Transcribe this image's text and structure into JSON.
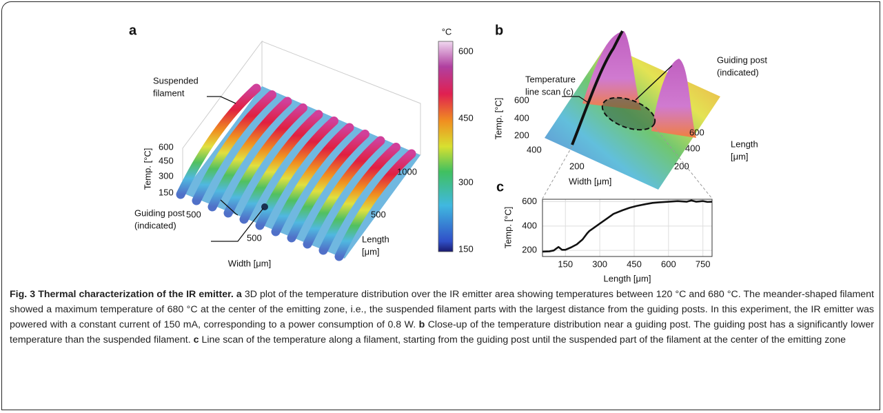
{
  "panel_a": {
    "label": "a",
    "colorbar_unit": "°C",
    "colorbar_ticks": [
      "600",
      "450",
      "300",
      "150"
    ],
    "annotation_top": [
      "Suspended",
      "filament"
    ],
    "annotation_bottom": [
      "Guiding post",
      "(indicated)"
    ],
    "z_label": "Temp. [°C]",
    "z_ticks": [
      "600",
      "450",
      "300",
      "150"
    ],
    "width_ticks": [
      "500",
      "500"
    ],
    "width_label": "Width [μm]",
    "length_ticks": [
      "1000",
      "500"
    ],
    "length_label": [
      "Length",
      "[μm]"
    ]
  },
  "panel_b": {
    "label": "b",
    "annotation_left": [
      "Temperature",
      "line scan (c)"
    ],
    "annotation_right": [
      "Guiding post",
      "(indicated)"
    ],
    "z_label": "Temp. [°C]",
    "z_ticks": [
      "600",
      "400",
      "200"
    ],
    "width_ticks": [
      "400",
      "200"
    ],
    "width_label": "Width [μm]",
    "length_ticks": [
      "600",
      "400",
      "200"
    ],
    "length_label": [
      "Length",
      "[μm]"
    ]
  },
  "chart_data": {
    "type": "line",
    "label": "c",
    "xlabel": "Length [μm]",
    "ylabel": "Temp. [°C]",
    "color": "#111111",
    "grid": true,
    "x": [
      50,
      80,
      100,
      110,
      120,
      135,
      150,
      175,
      200,
      225,
      245,
      255,
      270,
      300,
      330,
      360,
      400,
      430,
      460,
      500,
      530,
      560,
      600,
      640,
      680,
      700,
      720,
      750,
      770,
      790
    ],
    "values": [
      190,
      192,
      200,
      215,
      228,
      205,
      205,
      225,
      250,
      290,
      340,
      360,
      380,
      420,
      460,
      500,
      530,
      550,
      565,
      580,
      590,
      595,
      600,
      605,
      600,
      610,
      600,
      605,
      598,
      600
    ],
    "xlim": [
      50,
      790
    ],
    "ylim": [
      150,
      620
    ],
    "xticks": [
      150,
      300,
      450,
      600,
      750
    ],
    "yticks": [
      200,
      400,
      600
    ]
  },
  "caption": {
    "title": "Fig. 3 Thermal characterization of the IR emitter.",
    "items": [
      {
        "letter": "a",
        "text": "3D plot of the temperature distribution over the IR emitter area showing temperatures between 120 °C and 680 °C. The meander-shaped filament showed a maximum temperature of 680 °C at the center of the emitting zone, i.e., the suspended filament parts with the largest distance from the guiding posts. In this experiment, the IR emitter was powered with a constant current of 150 mA, corresponding to a power consumption of 0.8 W."
      },
      {
        "letter": "b",
        "text": "Close-up of the temperature distribution near a guiding post. The guiding post has a significantly lower temperature than the suspended filament."
      },
      {
        "letter": "c",
        "text": "Line scan of the temperature along a filament, starting from the guiding post until the suspended part of the filament at the center of the emitting zone"
      }
    ]
  }
}
